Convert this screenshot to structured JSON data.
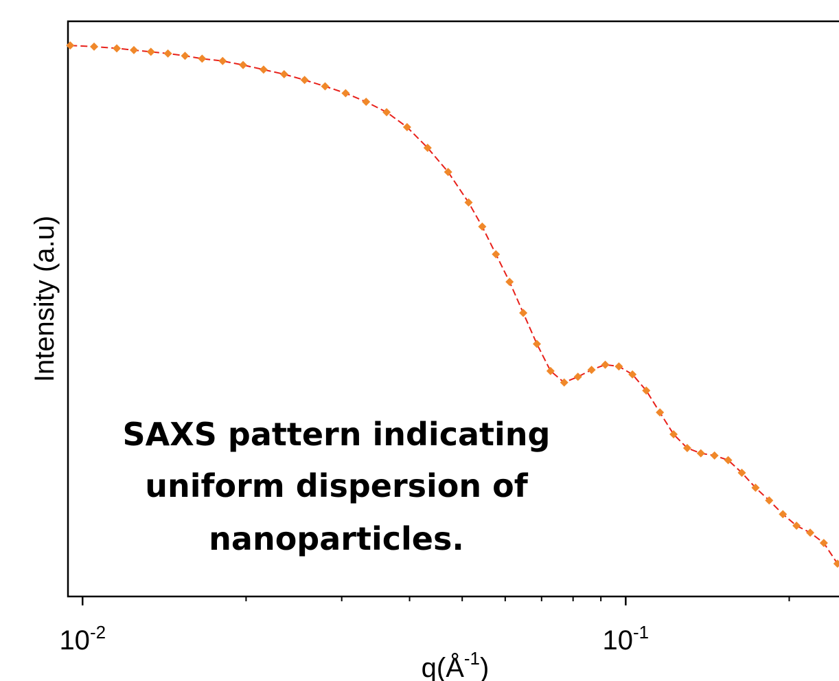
{
  "chart_data": {
    "type": "scatter",
    "x_log": true,
    "xlim": [
      0.0094,
      0.247
    ],
    "ylim": [
      0,
      100
    ],
    "xticks": [
      {
        "value": 0.01,
        "label": "10",
        "exponent": "-2"
      },
      {
        "value": 0.1,
        "label": "10",
        "exponent": "-1"
      }
    ],
    "xminor_ticks": [
      0.02,
      0.03,
      0.04,
      0.05,
      0.06,
      0.07,
      0.08,
      0.09,
      0.2
    ],
    "xlabel": {
      "text": "q(Å",
      "sup": "-1",
      "end": ")"
    },
    "ylabel": "Intensity (a.u)",
    "annotation": [
      "SAXS pattern indicating",
      "uniform dispersion of",
      "nanoparticles."
    ],
    "series": [
      {
        "marker_color": "#f0882a",
        "line_color": "#e8201a",
        "x": [
          0.00949,
          0.0105,
          0.01156,
          0.01243,
          0.01336,
          0.01436,
          0.01544,
          0.0166,
          0.01811,
          0.01975,
          0.02154,
          0.0235,
          0.02563,
          0.02796,
          0.0305,
          0.03327,
          0.03629,
          0.03958,
          0.04318,
          0.0471,
          0.05137,
          0.05443,
          0.05768,
          0.06112,
          0.06477,
          0.06862,
          0.07271,
          0.07704,
          0.08166,
          0.08652,
          0.09169,
          0.09714,
          0.1029,
          0.1091,
          0.1156,
          0.1225,
          0.1298,
          0.1375,
          0.1457,
          0.1544,
          0.1636,
          0.1734,
          0.1837,
          0.1947,
          0.2063,
          0.2186,
          0.2316,
          0.2454
        ],
        "values": [
          95.8,
          95.6,
          95.3,
          95.0,
          94.7,
          94.4,
          94.0,
          93.5,
          93.1,
          92.4,
          91.6,
          90.8,
          89.8,
          88.7,
          87.5,
          86.0,
          84.2,
          81.6,
          78.0,
          73.8,
          68.5,
          64.3,
          59.5,
          54.7,
          49.3,
          43.9,
          39.2,
          37.2,
          38.2,
          39.4,
          40.3,
          40.0,
          38.6,
          35.8,
          32.0,
          28.2,
          25.8,
          24.9,
          24.5,
          23.7,
          21.5,
          18.9,
          16.7,
          14.3,
          12.3,
          11.1,
          9.3,
          5.7
        ]
      }
    ]
  }
}
